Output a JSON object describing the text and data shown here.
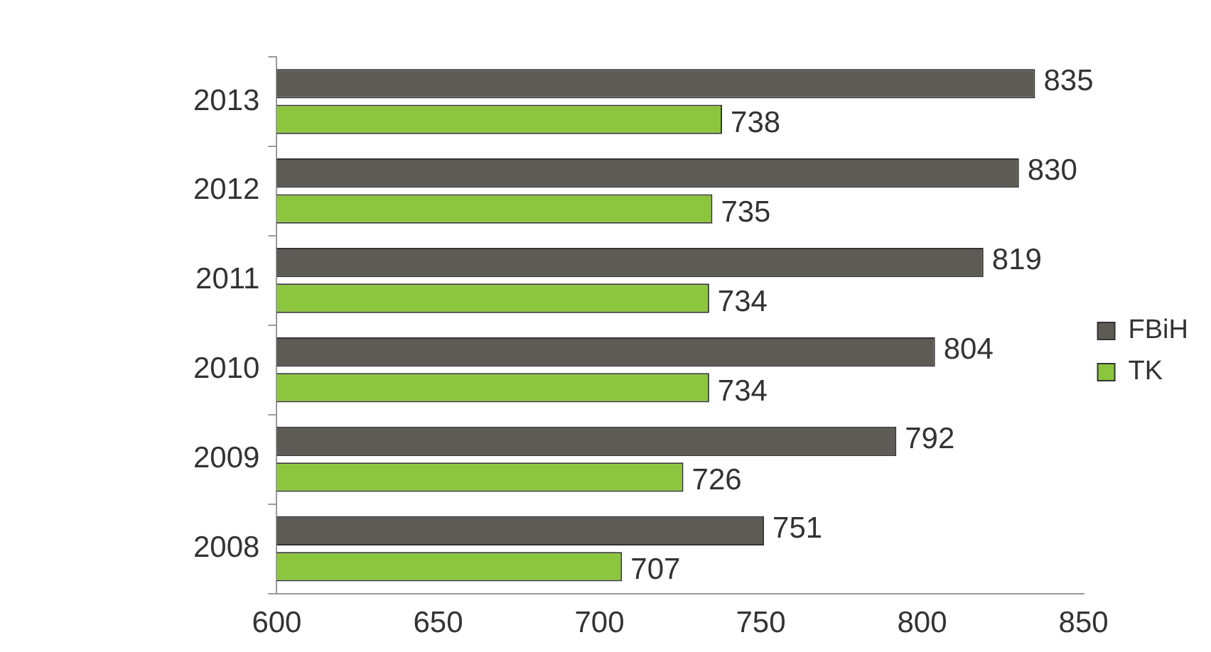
{
  "chart_data": {
    "type": "bar",
    "orientation": "horizontal",
    "categories": [
      "2013",
      "2012",
      "2011",
      "2010",
      "2009",
      "2008"
    ],
    "series": [
      {
        "name": "FBiH",
        "color": "#5e5a55",
        "values": [
          835,
          830,
          819,
          804,
          792,
          751
        ]
      },
      {
        "name": "TK",
        "color": "#8cc63e",
        "values": [
          738,
          735,
          734,
          734,
          726,
          707
        ]
      }
    ],
    "xlim": [
      600,
      850
    ],
    "xticks": [
      600,
      650,
      700,
      750,
      800,
      850
    ],
    "data_labels": true,
    "legend": "right",
    "grid": false
  }
}
